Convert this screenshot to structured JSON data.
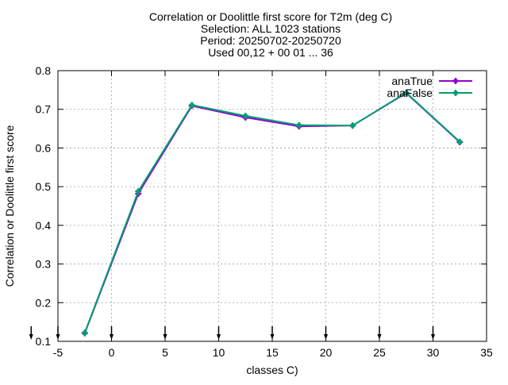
{
  "chart_data": {
    "type": "line",
    "title_lines": [
      "Correlation or Doolittle first score  for T2m (deg C)",
      "Selection: ALL   1023 stations",
      "Period: 20250702-20250720",
      "Used 00,12 + 00 01 ... 36"
    ],
    "xlabel": "classes C)",
    "ylabel": "Correlation or Doolittle first score",
    "xlim": [
      -5,
      35
    ],
    "ylim": [
      0.1,
      0.8
    ],
    "xticks": [
      -5,
      0,
      5,
      10,
      15,
      20,
      25,
      30,
      35
    ],
    "yticks": [
      0.1,
      0.2,
      0.3,
      0.4,
      0.5,
      0.6,
      0.7,
      0.8
    ],
    "xtick_labels": [
      "-5",
      "0",
      "5",
      "10",
      "15",
      "20",
      "25",
      "30",
      "35"
    ],
    "ytick_labels": [
      "0.1",
      "0.2",
      "0.3",
      "0.4",
      "0.5",
      "0.6",
      "0.7",
      "0.8"
    ],
    "grid": true,
    "legend_position": "top-right",
    "series": [
      {
        "name": "anaTrue",
        "color": "#9400d3",
        "x": [
          -2.5,
          2.5,
          7.5,
          12.5,
          17.5,
          22.5,
          27.5,
          32.5
        ],
        "y": [
          0.121,
          0.482,
          0.709,
          0.679,
          0.656,
          0.658,
          0.742,
          0.615
        ]
      },
      {
        "name": "anaFalse",
        "color": "#009e73",
        "x": [
          -2.5,
          2.5,
          7.5,
          12.5,
          17.5,
          22.5,
          27.5,
          32.5
        ],
        "y": [
          0.122,
          0.488,
          0.711,
          0.683,
          0.659,
          0.658,
          0.743,
          0.616
        ]
      }
    ],
    "arrow_markers_x": [
      -7.5,
      -5,
      0,
      5,
      10,
      15,
      20,
      25,
      30
    ]
  }
}
